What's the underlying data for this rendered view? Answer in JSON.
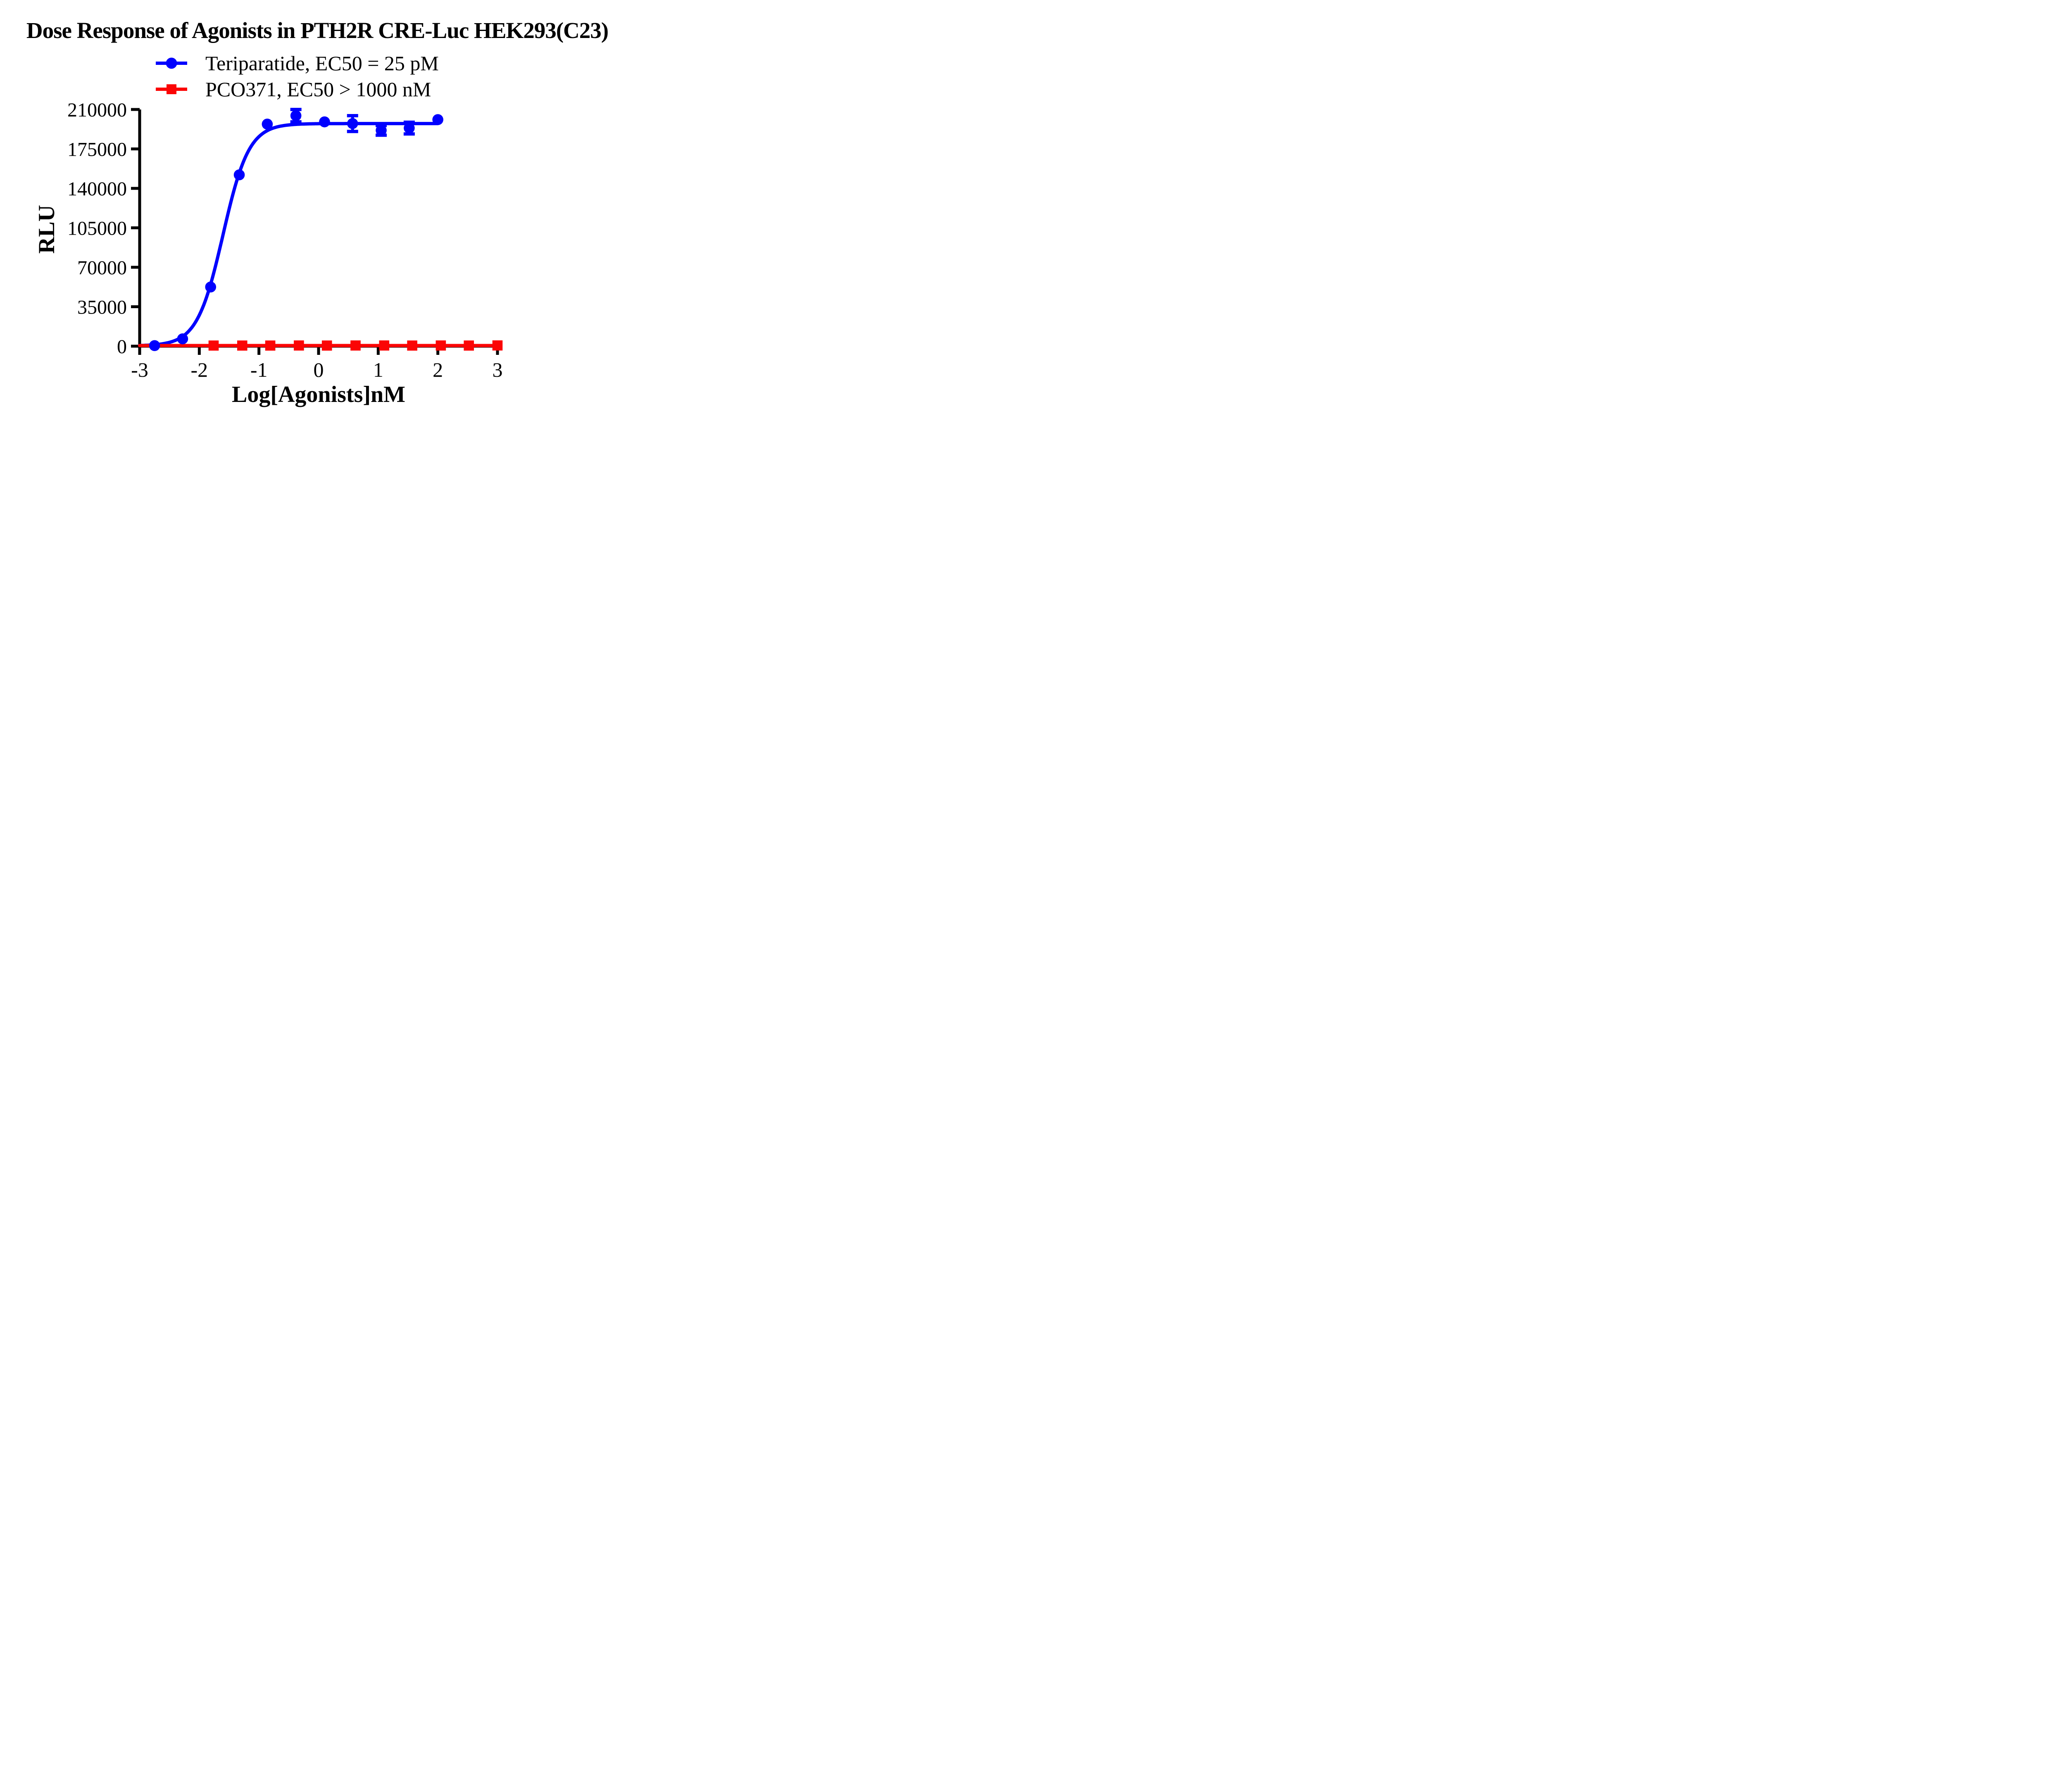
{
  "title": "Dose Response of Agonists in PTH2R CRE-Luc HEK293(C23)",
  "legend": {
    "items": [
      {
        "label": "Teriparatide, EC50 = 25 pM",
        "color": "#0000fe",
        "marker": "circle"
      },
      {
        "label": "PCO371, EC50 > 1000 nM",
        "color": "#fb0505",
        "marker": "square"
      }
    ]
  },
  "chart_data": {
    "type": "scatter",
    "title": "Dose Response of Agonists in PTH2R CRE-Luc HEK293(C23)",
    "xlabel": "Log[Agonists]nM",
    "ylabel": "RLU",
    "xlim": [
      -3,
      3
    ],
    "ylim": [
      0,
      210000
    ],
    "x_ticks": [
      -3,
      -2,
      -1,
      0,
      1,
      2,
      3
    ],
    "y_ticks": [
      0,
      35000,
      70000,
      105000,
      140000,
      175000,
      210000
    ],
    "grid": false,
    "legend_position": "above-plot-left",
    "axis_color": "#000000",
    "series": [
      {
        "name": "Teriparatide, EC50 = 25 pM",
        "color": "#0000fe",
        "marker": "circle",
        "x": [
          -2.75,
          -2.28,
          -1.81,
          -1.33,
          -0.86,
          -0.38,
          0.1,
          0.57,
          1.05,
          1.52,
          2.0
        ],
        "y": [
          500,
          6500,
          52500,
          152000,
          197000,
          204500,
          199000,
          197500,
          191500,
          193500,
          201000
        ],
        "y_error": [
          null,
          null,
          null,
          null,
          null,
          5500,
          null,
          7000,
          4300,
          5200,
          null
        ],
        "fit": {
          "model": "sigmoid-4pl",
          "bottom": 300,
          "top": 197500,
          "log_ec50": -1.602,
          "hill": 2.0,
          "x_range": [
            -3,
            2.0
          ],
          "ec50_text": "EC50 = 25 pM"
        }
      },
      {
        "name": "PCO371, EC50 > 1000 nM",
        "color": "#fb0505",
        "marker": "square",
        "x": [
          -1.76,
          -1.28,
          -0.81,
          -0.33,
          0.14,
          0.62,
          1.1,
          1.57,
          2.05,
          2.52,
          3.0
        ],
        "y": [
          550,
          550,
          550,
          600,
          550,
          600,
          600,
          550,
          600,
          550,
          650
        ],
        "y_error": [
          null,
          null,
          null,
          null,
          null,
          null,
          null,
          null,
          null,
          null,
          null
        ],
        "fit": {
          "model": "flat",
          "value": 550,
          "x_range": [
            -3,
            3.0
          ],
          "ec50_text": "EC50 > 1000 nM"
        }
      }
    ]
  }
}
